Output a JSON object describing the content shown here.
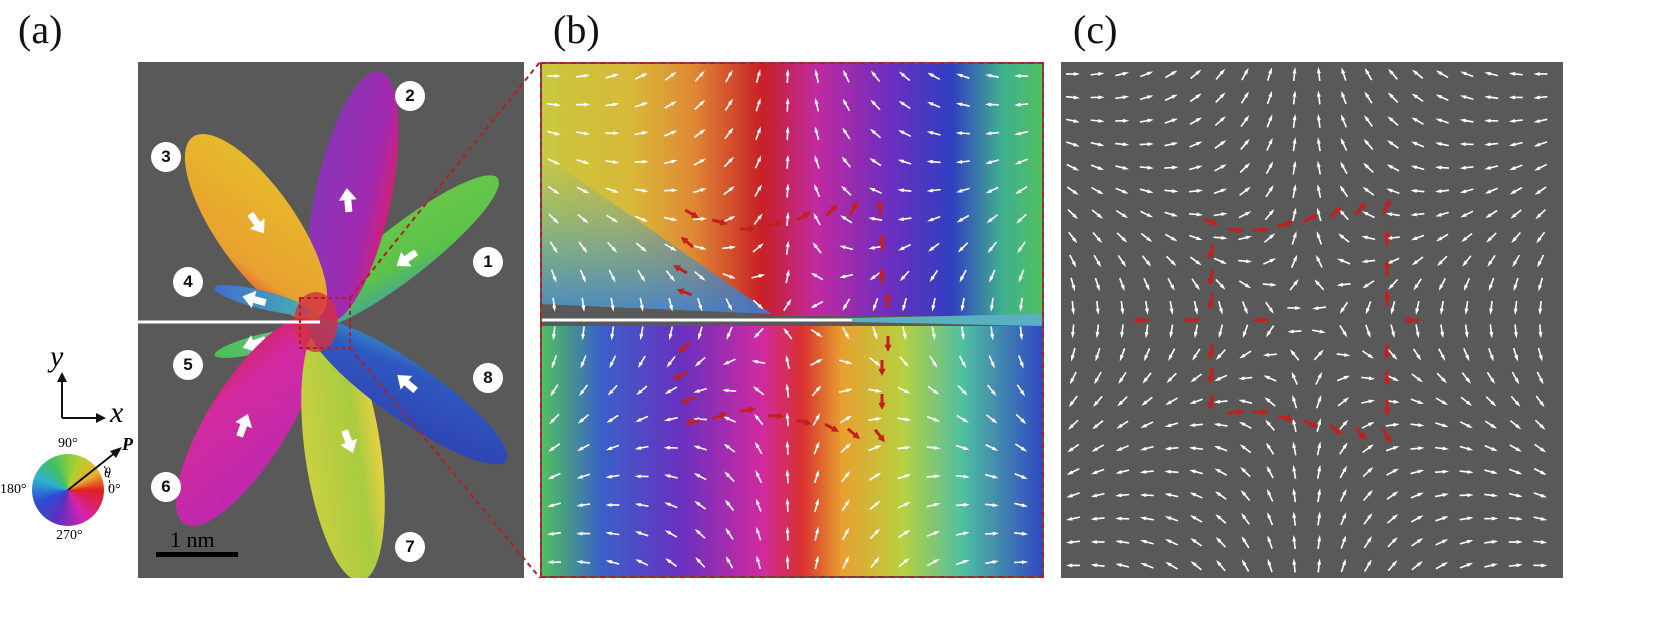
{
  "panels": {
    "a": {
      "label": "(a)"
    },
    "b": {
      "label": "(b)"
    },
    "c": {
      "label": "(c)"
    }
  },
  "petals": [
    {
      "number": "1",
      "hue": "#5cc24a"
    },
    {
      "number": "2",
      "hue": "#8a35b5"
    },
    {
      "number": "3",
      "hue": "#e0b92a"
    },
    {
      "number": "4",
      "hue": "#3f7fd0"
    },
    {
      "number": "5",
      "hue": "#4fbf5a"
    },
    {
      "number": "6",
      "hue": "#c424a6"
    },
    {
      "number": "7",
      "hue": "#b8cf3a"
    },
    {
      "number": "8",
      "hue": "#2f48b8"
    }
  ],
  "axes": {
    "y": "y",
    "x": "x"
  },
  "color_wheel": {
    "deg_90": "90°",
    "deg_180": "180°",
    "deg_270": "270°",
    "deg_0": "0°",
    "theta": "θ",
    "polarization": "P"
  },
  "scale_bar": {
    "label": "1 nm"
  },
  "colors": {
    "background": "#595959",
    "crack": "#ffffff",
    "highlight_arrow": "#c41e1e",
    "inset_border": "#b02020",
    "arrow": "#ffffff"
  }
}
